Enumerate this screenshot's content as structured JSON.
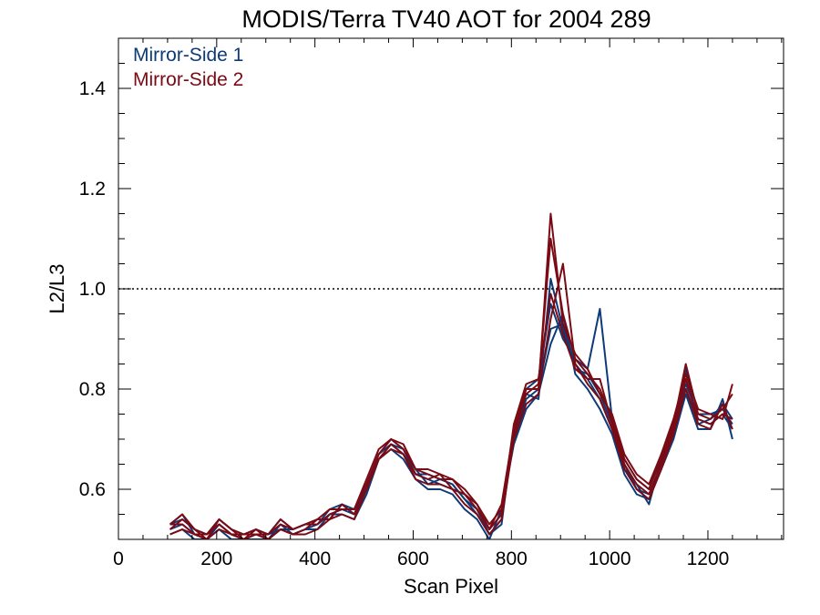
{
  "chart_data": {
    "type": "line",
    "title": "MODIS/Terra TV40 AOT for 2004 289",
    "xlabel": "Scan Pixel",
    "ylabel": "L2/L3",
    "xlim": [
      0,
      1354
    ],
    "ylim": [
      0.5,
      1.5
    ],
    "xticks": [
      "0",
      "200",
      "400",
      "600",
      "800",
      "1000",
      "1200"
    ],
    "yticks": [
      "0.6",
      "0.8",
      "1.0",
      "1.2",
      "1.4"
    ],
    "reference_line": 1.0,
    "grid": false,
    "legend_position": "top-left",
    "x": [
      105,
      130,
      155,
      180,
      205,
      230,
      255,
      280,
      305,
      330,
      355,
      380,
      405,
      430,
      455,
      480,
      505,
      530,
      555,
      580,
      605,
      630,
      655,
      680,
      705,
      730,
      755,
      780,
      805,
      830,
      855,
      880,
      905,
      930,
      955,
      980,
      1005,
      1030,
      1055,
      1080,
      1105,
      1130,
      1155,
      1180,
      1205,
      1230,
      1250
    ],
    "series": [
      {
        "name": "Mirror-Side 1",
        "color": "#0e3a78",
        "lines": [
          [
            0.52,
            0.53,
            0.51,
            0.5,
            0.53,
            0.51,
            0.5,
            0.51,
            0.5,
            0.53,
            0.51,
            0.52,
            0.53,
            0.55,
            0.56,
            0.55,
            0.6,
            0.66,
            0.69,
            0.67,
            0.63,
            0.62,
            0.61,
            0.6,
            0.59,
            0.56,
            0.52,
            0.55,
            0.7,
            0.78,
            0.8,
            0.92,
            0.93,
            0.85,
            0.82,
            0.78,
            0.72,
            0.65,
            0.6,
            0.59,
            0.65,
            0.72,
            0.8,
            0.74,
            0.73,
            0.75,
            0.72
          ],
          [
            0.53,
            0.54,
            0.52,
            0.51,
            0.54,
            0.52,
            0.51,
            0.51,
            0.51,
            0.52,
            0.52,
            0.53,
            0.54,
            0.54,
            0.57,
            0.56,
            0.61,
            0.67,
            0.7,
            0.68,
            0.64,
            0.61,
            0.62,
            0.61,
            0.58,
            0.55,
            0.51,
            0.53,
            0.72,
            0.8,
            0.82,
            0.97,
            0.9,
            0.86,
            0.84,
            0.96,
            0.74,
            0.64,
            0.61,
            0.57,
            0.66,
            0.71,
            0.84,
            0.73,
            0.74,
            0.77,
            0.74
          ],
          [
            0.51,
            0.52,
            0.5,
            0.5,
            0.52,
            0.5,
            0.5,
            0.5,
            0.5,
            0.52,
            0.51,
            0.52,
            0.52,
            0.55,
            0.55,
            0.54,
            0.59,
            0.66,
            0.68,
            0.66,
            0.62,
            0.6,
            0.6,
            0.59,
            0.56,
            0.54,
            0.5,
            0.56,
            0.69,
            0.76,
            0.79,
            0.89,
            0.95,
            0.83,
            0.8,
            0.76,
            0.71,
            0.63,
            0.59,
            0.58,
            0.64,
            0.7,
            0.79,
            0.72,
            0.72,
            0.78,
            0.7
          ],
          [
            0.53,
            0.55,
            0.51,
            0.51,
            0.53,
            0.51,
            0.51,
            0.52,
            0.51,
            0.54,
            0.52,
            0.53,
            0.53,
            0.56,
            0.57,
            0.55,
            0.61,
            0.67,
            0.69,
            0.68,
            0.63,
            0.63,
            0.62,
            0.61,
            0.58,
            0.56,
            0.51,
            0.54,
            0.71,
            0.79,
            0.78,
            1.02,
            0.92,
            0.84,
            0.83,
            0.79,
            0.73,
            0.66,
            0.62,
            0.6,
            0.67,
            0.73,
            0.81,
            0.75,
            0.75,
            0.76,
            0.73
          ]
        ]
      },
      {
        "name": "Mirror-Side 2",
        "color": "#7a0a14",
        "lines": [
          [
            0.53,
            0.53,
            0.51,
            0.51,
            0.53,
            0.51,
            0.51,
            0.51,
            0.51,
            0.53,
            0.52,
            0.53,
            0.53,
            0.55,
            0.56,
            0.56,
            0.61,
            0.67,
            0.7,
            0.68,
            0.64,
            0.63,
            0.62,
            0.62,
            0.6,
            0.57,
            0.53,
            0.56,
            0.71,
            0.79,
            0.81,
            1.1,
            0.95,
            0.86,
            0.83,
            0.8,
            0.74,
            0.66,
            0.62,
            0.6,
            0.66,
            0.73,
            0.85,
            0.75,
            0.74,
            0.76,
            0.79
          ],
          [
            0.52,
            0.54,
            0.52,
            0.5,
            0.54,
            0.52,
            0.5,
            0.52,
            0.5,
            0.52,
            0.51,
            0.52,
            0.54,
            0.54,
            0.57,
            0.55,
            0.6,
            0.66,
            0.69,
            0.67,
            0.63,
            0.62,
            0.63,
            0.6,
            0.59,
            0.56,
            0.52,
            0.55,
            0.73,
            0.81,
            0.82,
            0.99,
            0.91,
            0.84,
            0.82,
            0.82,
            0.73,
            0.65,
            0.61,
            0.59,
            0.65,
            0.72,
            0.82,
            0.74,
            0.73,
            0.75,
            0.74
          ],
          [
            0.51,
            0.52,
            0.51,
            0.5,
            0.52,
            0.51,
            0.5,
            0.51,
            0.5,
            0.52,
            0.51,
            0.51,
            0.52,
            0.54,
            0.55,
            0.54,
            0.6,
            0.66,
            0.68,
            0.67,
            0.62,
            0.61,
            0.61,
            0.6,
            0.57,
            0.55,
            0.51,
            0.54,
            0.7,
            0.77,
            0.79,
            0.94,
            1.05,
            0.85,
            0.81,
            0.78,
            0.72,
            0.64,
            0.6,
            0.58,
            0.64,
            0.71,
            0.8,
            0.73,
            0.72,
            0.77,
            0.72
          ],
          [
            0.53,
            0.55,
            0.52,
            0.51,
            0.54,
            0.52,
            0.51,
            0.52,
            0.51,
            0.54,
            0.52,
            0.53,
            0.54,
            0.56,
            0.56,
            0.56,
            0.62,
            0.68,
            0.7,
            0.69,
            0.64,
            0.64,
            0.63,
            0.62,
            0.59,
            0.57,
            0.52,
            0.57,
            0.72,
            0.8,
            0.8,
            1.15,
            0.93,
            0.87,
            0.84,
            0.79,
            0.75,
            0.67,
            0.63,
            0.61,
            0.67,
            0.74,
            0.83,
            0.76,
            0.75,
            0.74,
            0.81
          ]
        ]
      }
    ]
  }
}
